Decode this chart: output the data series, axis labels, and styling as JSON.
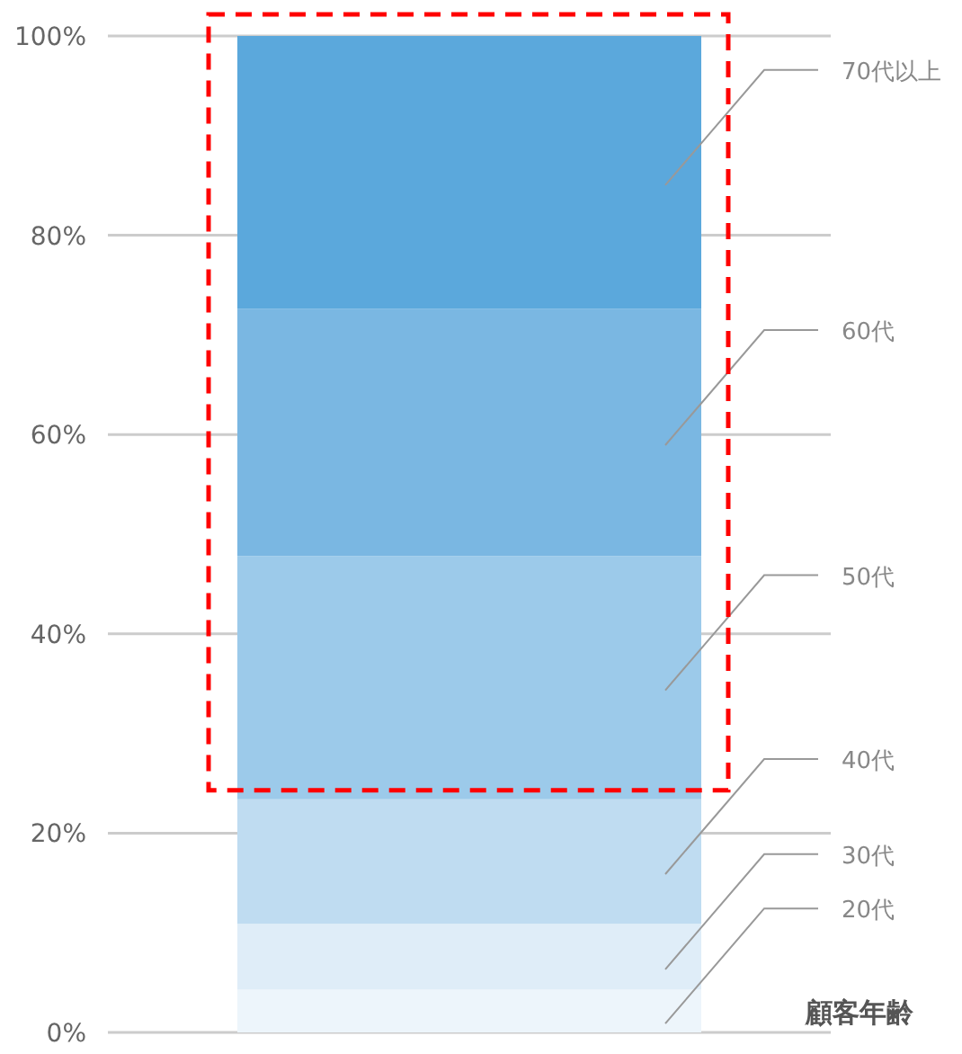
{
  "chart_data": {
    "type": "bar",
    "stacked": true,
    "categories": [
      null
    ],
    "xlabel": "顧客年齢",
    "ylim": [
      0,
      100
    ],
    "yticks": [
      {
        "value": 0,
        "label": "0%"
      },
      {
        "value": 20,
        "label": "20%"
      },
      {
        "value": 40,
        "label": "40%"
      },
      {
        "value": 60,
        "label": "60%"
      },
      {
        "value": 80,
        "label": "80%"
      },
      {
        "value": 100,
        "label": "100%"
      }
    ],
    "grid": "y",
    "legend": false,
    "series": [
      {
        "name": "20代",
        "color": "#edf5fb",
        "values": [
          4.3
        ]
      },
      {
        "name": "30代",
        "color": "#dfedf8",
        "values": [
          6.6
        ]
      },
      {
        "name": "40代",
        "color": "#bfdcf1",
        "values": [
          12.5
        ]
      },
      {
        "name": "50代",
        "color": "#9ccaea",
        "values": [
          24.4
        ]
      },
      {
        "name": "60代",
        "color": "#7ab7e2",
        "values": [
          24.8
        ]
      },
      {
        "name": "70代以上",
        "color": "#5ba8dc",
        "values": [
          27.4
        ]
      }
    ]
  }
}
